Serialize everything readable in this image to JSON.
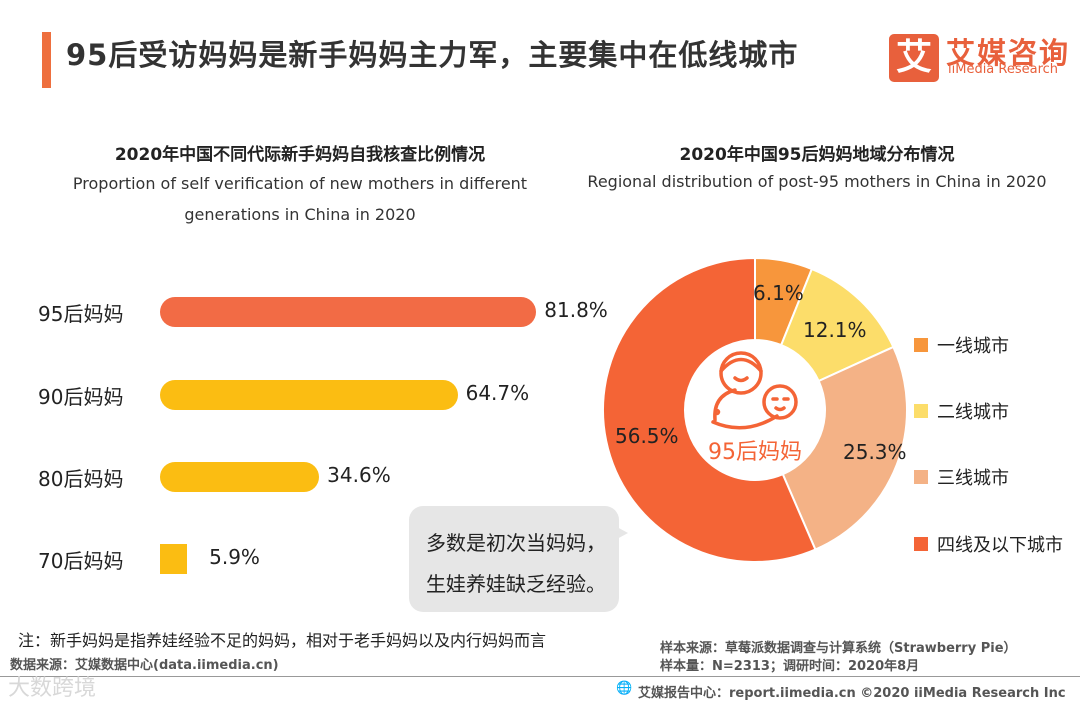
{
  "header": {
    "title": "95后受访妈妈是新手妈妈主力军，主要集中在低线城市",
    "logo_mark": "艾",
    "logo_cn": "艾媒咨询",
    "logo_en": "iiMedia Research",
    "accent_color": "#ee6f3e",
    "brand_color": "#e8603c"
  },
  "chart_data": [
    {
      "type": "bar",
      "orientation": "horizontal",
      "title": "2020年中国不同代际新手妈妈自我核查比例情况",
      "subtitle_line1": "Proportion of self verification of new mothers in different",
      "subtitle_line2": "generations in China in 2020",
      "categories": [
        "95后妈妈",
        "90后妈妈",
        "80后妈妈",
        "70后妈妈"
      ],
      "values": [
        81.8,
        64.7,
        34.6,
        5.9
      ],
      "value_labels": [
        "81.8%",
        "64.7%",
        "34.6%",
        "5.9%"
      ],
      "colors": [
        "#f26b45",
        "#fbbd12",
        "#fbbd12",
        "#fbbd12"
      ],
      "xlim": [
        0,
        100
      ],
      "unit": "%"
    },
    {
      "type": "pie",
      "variant": "donut",
      "title": "2020年中国95后妈妈地域分布情况",
      "subtitle": "Regional distribution of post-95 mothers in China in 2020",
      "categories": [
        "一线城市",
        "二线城市",
        "三线城市",
        "四线及以下城市"
      ],
      "values": [
        6.1,
        12.1,
        25.3,
        56.5
      ],
      "value_labels": [
        "6.1%",
        "12.1%",
        "25.3%",
        "56.5%"
      ],
      "colors": [
        "#f7963c",
        "#fcdd6a",
        "#f4b286",
        "#f46436"
      ],
      "center_label": "95后妈妈",
      "legend_position": "right"
    }
  ],
  "callout": {
    "line1": "多数是初次当妈妈，",
    "line2": "生娃养娃缺乏经验。"
  },
  "footer": {
    "note": "注：新手妈妈是指养娃经验不足的妈妈，相对于老手妈妈以及内行妈妈而言",
    "data_source": "数据来源：艾媒数据中心(data.iimedia.cn)",
    "sample_source": "样本来源：草莓派数据调查与计算系统（Strawberry Pie）",
    "sample_size": "样本量：N=2313；调研时间：2020年8月",
    "report_center": "艾媒报告中心：report.iimedia.cn  ©2020  iiMedia Research  Inc",
    "watermark": "大数跨境"
  }
}
